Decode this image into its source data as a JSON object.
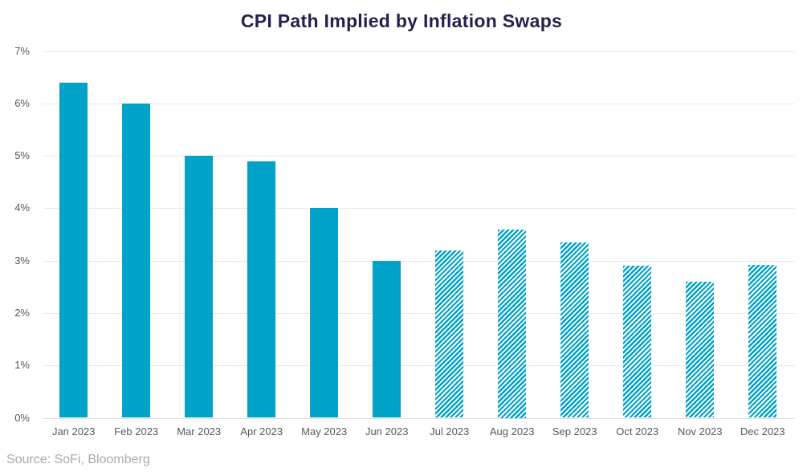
{
  "source": "Source: SoFi, Bloomberg",
  "colors": {
    "bar_teal": "#00a2c8",
    "title_navy": "#251f4f",
    "axis_label_gray": "#58585a",
    "gridline_gray": "#e8e8e8",
    "source_gray": "#a9a9a9",
    "background": "#ffffff"
  },
  "chart_data": {
    "type": "bar",
    "title": "CPI Path Implied by Inflation Swaps",
    "categories": [
      "Jan 2023",
      "Feb 2023",
      "Mar 2023",
      "Apr 2023",
      "May 2023",
      "Jun 2023",
      "Jul 2023",
      "Aug 2023",
      "Sep 2023",
      "Oct 2023",
      "Nov 2023",
      "Dec 2023"
    ],
    "values": [
      6.4,
      6.0,
      5.0,
      4.9,
      4.0,
      3.0,
      3.2,
      3.6,
      3.35,
      2.9,
      2.6,
      2.92
    ],
    "bar_styles": [
      "solid",
      "solid",
      "solid",
      "solid",
      "solid",
      "solid",
      "hatched",
      "hatched",
      "hatched",
      "hatched",
      "hatched",
      "hatched"
    ],
    "xlabel": "",
    "ylabel": "",
    "ylim": [
      0,
      7
    ],
    "ytick_labels": [
      "0%",
      "1%",
      "2%",
      "3%",
      "4%",
      "5%",
      "6%",
      "7%"
    ],
    "grid": "horizontal",
    "legend": "none",
    "annotation": "First six bars solid (realized path), last six bars diagonally hatched (swap-implied path)"
  }
}
